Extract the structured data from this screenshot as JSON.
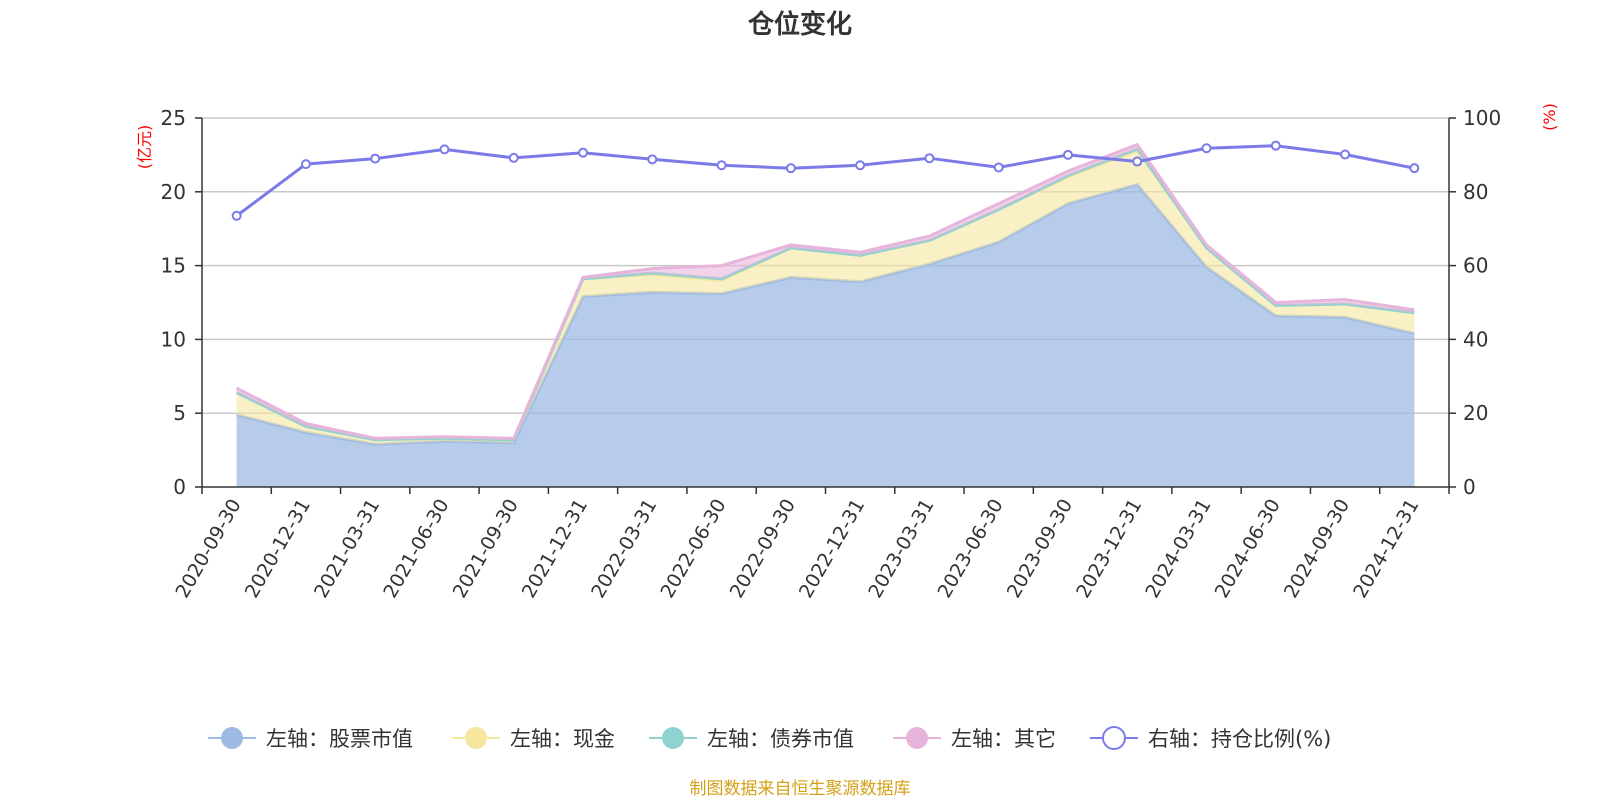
{
  "chart_data": {
    "type": "area",
    "title": "仓位变化",
    "left_axis": {
      "unit": "(亿元)",
      "ylim": [
        0,
        25
      ],
      "ticks": [
        "0",
        "5",
        "10",
        "15",
        "20",
        "25"
      ]
    },
    "right_axis": {
      "unit": "(%)",
      "ylim": [
        0,
        100
      ],
      "ticks": [
        "0",
        "20",
        "40",
        "60",
        "80",
        "100"
      ]
    },
    "categories": [
      "2020-09-30",
      "2020-12-31",
      "2021-03-31",
      "2021-06-30",
      "2021-09-30",
      "2021-12-31",
      "2022-03-31",
      "2022-06-30",
      "2022-09-30",
      "2022-12-31",
      "2023-03-31",
      "2023-06-30",
      "2023-09-30",
      "2023-12-31",
      "2024-03-31",
      "2024-06-30",
      "2024-09-30",
      "2024-12-31"
    ],
    "series": [
      {
        "name": "左轴：股票市值",
        "axis": "left",
        "stack": true,
        "color": "#9fbbe3",
        "values": [
          4.9,
          3.7,
          2.9,
          3.1,
          3.0,
          12.9,
          13.2,
          13.1,
          14.2,
          13.9,
          15.1,
          16.6,
          19.2,
          20.5,
          14.9,
          11.6,
          11.5,
          10.4
        ]
      },
      {
        "name": "左轴：现金",
        "axis": "left",
        "stack": true,
        "color": "#f7e6a0",
        "values": [
          1.5,
          0.4,
          0.3,
          0.2,
          0.2,
          1.2,
          1.2,
          0.9,
          2.0,
          1.8,
          1.6,
          2.2,
          1.8,
          2.3,
          1.3,
          0.7,
          0.9,
          1.4
        ]
      },
      {
        "name": "左轴：债券市值",
        "axis": "left",
        "stack": true,
        "color": "#8fd3d0",
        "values": [
          0,
          0,
          0,
          0,
          0,
          0,
          0.1,
          0.1,
          0,
          0,
          0,
          0,
          0.1,
          0.1,
          0,
          0,
          0,
          0
        ]
      },
      {
        "name": "左轴：其它",
        "axis": "left",
        "stack": true,
        "color": "#e7b5dc",
        "values": [
          0.3,
          0.2,
          0.1,
          0.1,
          0.1,
          0.1,
          0.3,
          0.9,
          0.2,
          0.2,
          0.3,
          0.4,
          0.3,
          0.3,
          0.2,
          0.2,
          0.3,
          0.2
        ]
      },
      {
        "name": "右轴：持仓比例(%)",
        "axis": "right",
        "stack": false,
        "color": "#7b7be8",
        "values": [
          73.5,
          87.5,
          89.0,
          91.5,
          89.2,
          90.6,
          88.8,
          87.2,
          86.4,
          87.2,
          89.1,
          86.6,
          90.0,
          88.2,
          91.8,
          92.5,
          90.1,
          86.4
        ]
      }
    ],
    "grid": true,
    "legend_position": "bottom"
  },
  "source": "制图数据来自恒生聚源数据库"
}
